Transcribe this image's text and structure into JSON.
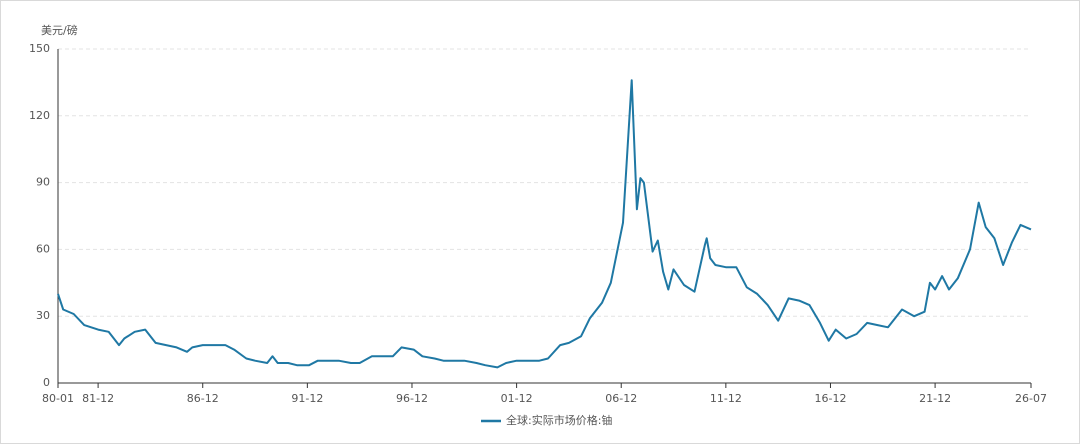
{
  "chart_data": {
    "type": "line",
    "y_label": "美元/磅",
    "x": [
      "80-01",
      "80-04",
      "80-10",
      "81-04",
      "81-12",
      "82-06",
      "82-12",
      "83-03",
      "83-09",
      "84-03",
      "84-09",
      "85-03",
      "85-09",
      "86-03",
      "86-06",
      "86-12",
      "87-06",
      "88-01",
      "88-06",
      "89-01",
      "89-06",
      "90-01",
      "90-04",
      "90-07",
      "91-01",
      "91-06",
      "92-01",
      "92-06",
      "93-01",
      "93-06",
      "94-01",
      "94-06",
      "95-01",
      "95-06",
      "96-01",
      "96-06",
      "97-01",
      "97-06",
      "98-01",
      "98-06",
      "99-01",
      "99-06",
      "00-01",
      "00-06",
      "01-01",
      "01-06",
      "01-12",
      "02-06",
      "03-01",
      "03-06",
      "04-01",
      "04-06",
      "05-01",
      "05-06",
      "06-01",
      "06-06",
      "07-01",
      "07-06",
      "07-09",
      "07-11",
      "08-01",
      "08-06",
      "08-09",
      "08-12",
      "09-03",
      "09-06",
      "09-12",
      "10-06",
      "10-12",
      "11-01",
      "11-03",
      "11-06",
      "11-12",
      "12-06",
      "12-12",
      "13-06",
      "13-12",
      "14-06",
      "14-12",
      "15-06",
      "15-12",
      "16-06",
      "16-11",
      "17-03",
      "17-09",
      "18-03",
      "18-09",
      "19-03",
      "19-09",
      "20-05",
      "20-12",
      "21-06",
      "21-09",
      "21-12",
      "22-04",
      "22-08",
      "23-01",
      "23-08",
      "24-01",
      "24-05",
      "24-10",
      "25-03",
      "25-08",
      "26-01",
      "26-07"
    ],
    "series": [
      {
        "name": "全球:实际市场价格:铀",
        "color": "#1f78a4",
        "values": [
          40,
          33,
          31,
          26,
          24,
          23,
          17,
          20,
          23,
          24,
          18,
          17,
          16,
          14,
          16,
          17,
          17,
          17,
          15,
          11,
          10,
          9,
          12,
          9,
          9,
          8,
          8,
          10,
          10,
          10,
          9,
          9,
          12,
          12,
          12,
          16,
          15,
          12,
          11,
          10,
          10,
          10,
          9,
          8,
          7,
          9,
          10,
          10,
          10,
          11,
          17,
          18,
          21,
          29,
          36,
          45,
          72,
          136,
          78,
          92,
          90,
          59,
          64,
          50,
          42,
          51,
          44,
          41,
          62,
          65,
          56,
          53,
          52,
          52,
          43,
          40,
          35,
          28,
          38,
          37,
          35,
          27,
          19,
          24,
          20,
          22,
          27,
          26,
          25,
          33,
          30,
          32,
          45,
          42,
          48,
          42,
          47,
          60,
          81,
          70,
          65,
          53,
          63,
          71,
          69
        ]
      }
    ],
    "xticks": [
      "80-01",
      "81-12",
      "86-12",
      "91-12",
      "96-12",
      "01-12",
      "06-12",
      "11-12",
      "16-12",
      "21-12",
      "26-07"
    ],
    "ylim": [
      0,
      150
    ],
    "yticks": [
      0,
      30,
      60,
      90,
      120,
      150
    ],
    "grid": true,
    "legend": "bottom"
  }
}
